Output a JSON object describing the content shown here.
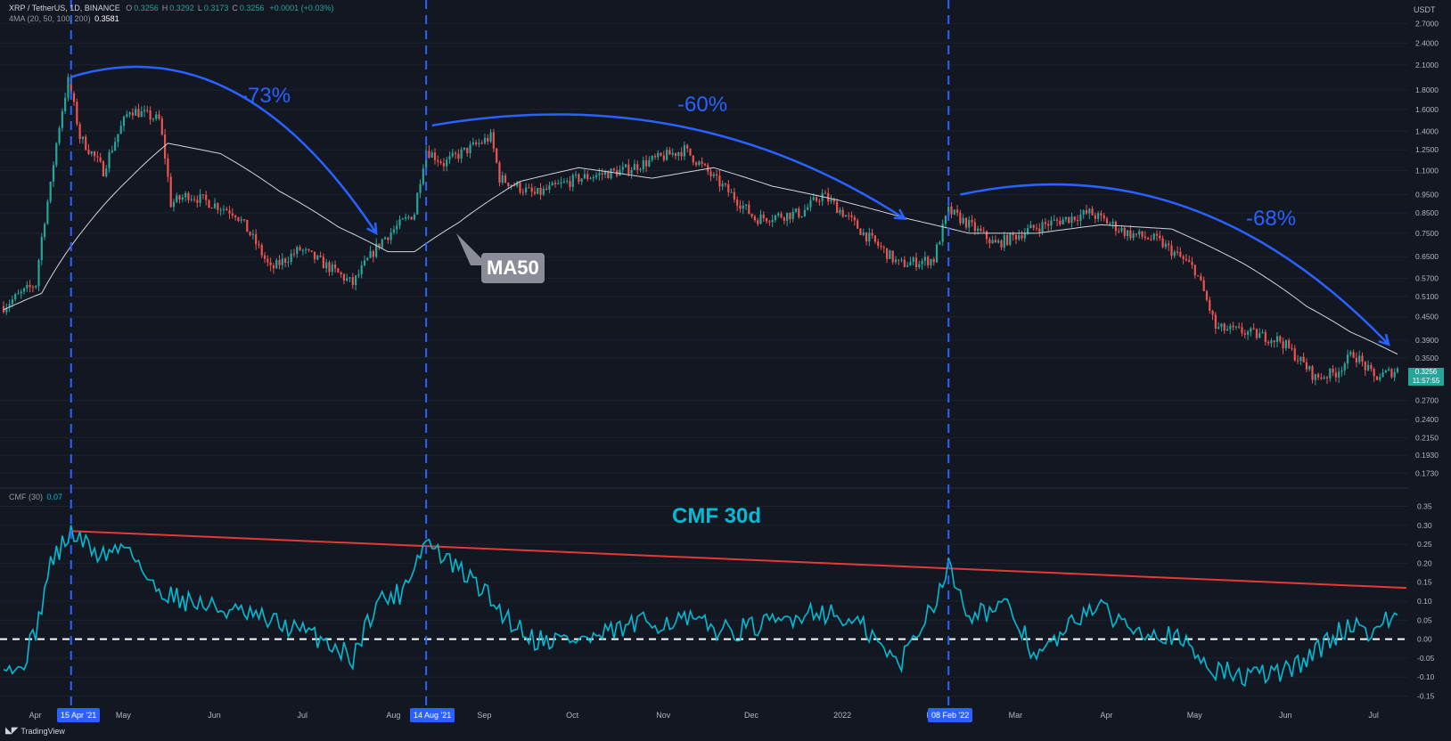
{
  "header": {
    "symbol": "XRP / TetherUS, 1D, BINANCE",
    "ohlc": [
      {
        "k": "O",
        "v": "0.3256"
      },
      {
        "k": "H",
        "v": "0.3292"
      },
      {
        "k": "L",
        "v": "0.3173"
      },
      {
        "k": "C",
        "v": "0.3256"
      },
      {
        "k": "",
        "v": "+0.0001 (+0.03%)"
      }
    ],
    "ma_indicator": "4MA (20, 50, 100, 200)",
    "ma_value": "0.3581",
    "cmf_indicator": "CMF (30)",
    "cmf_value": "0.07",
    "currency": "USDT"
  },
  "footer": {
    "brand": "TradingView"
  },
  "annotations": {
    "drop1": "-73%",
    "drop2": "-60%",
    "drop3": "-68%",
    "ma_label": "MA50",
    "cmf_title": "CMF 30d"
  },
  "price_badge": {
    "price": "0.3256",
    "countdown": "11:57:55"
  },
  "date_pills": [
    "15 Apr '21",
    "14 Aug '21",
    "08 Feb '22"
  ],
  "colors": {
    "background": "#131722",
    "up": "#26a69a",
    "down": "#ef5350",
    "ma": "#d1d4dc",
    "annotation": "#2962ff",
    "cmf": "#00bcd4",
    "trend": "#e53935"
  },
  "chart_data": [
    {
      "type": "candlestick",
      "title": "XRP / TetherUS, 1D, BINANCE",
      "y_scale": "log",
      "y_ticks": [
        2.7,
        2.4,
        2.1,
        1.8,
        1.6,
        1.4,
        1.25,
        1.1,
        0.95,
        0.85,
        0.75,
        0.65,
        0.57,
        0.51,
        0.45,
        0.39,
        0.35,
        0.27,
        0.24,
        0.215,
        0.193,
        0.173
      ],
      "y_tick_labels": [
        "2.7000",
        "2.4000",
        "2.1000",
        "1.8000",
        "1.6000",
        "1.4000",
        "1.2500",
        "1.1000",
        "0.9500",
        "0.8500",
        "0.7500",
        "0.6500",
        "0.5700",
        "0.5100",
        "0.4500",
        "0.3900",
        "0.3500",
        "0.2700",
        "0.2400",
        "0.2150",
        "0.1930",
        "0.1730"
      ],
      "x_ticks": [
        "Apr",
        "May",
        "Jun",
        "Jul",
        "Aug",
        "Sep",
        "Oct",
        "Nov",
        "Dec",
        "2022",
        "Feb",
        "Mar",
        "Apr",
        "May",
        "Jun",
        "Jul"
      ],
      "x_range": [
        "2021-03-23",
        "2022-07-11"
      ],
      "price_anchors": [
        {
          "date": "2021-03-23",
          "price": 0.48
        },
        {
          "date": "2021-04-03",
          "price": 0.55
        },
        {
          "date": "2021-04-08",
          "price": 1.0
        },
        {
          "date": "2021-04-14",
          "price": 1.9
        },
        {
          "date": "2021-04-18",
          "price": 1.35
        },
        {
          "date": "2021-04-26",
          "price": 1.1
        },
        {
          "date": "2021-05-05",
          "price": 1.6
        },
        {
          "date": "2021-05-15",
          "price": 1.5
        },
        {
          "date": "2021-05-19",
          "price": 0.9
        },
        {
          "date": "2021-05-25",
          "price": 0.95
        },
        {
          "date": "2021-06-10",
          "price": 0.85
        },
        {
          "date": "2021-06-22",
          "price": 0.6
        },
        {
          "date": "2021-07-02",
          "price": 0.68
        },
        {
          "date": "2021-07-20",
          "price": 0.55
        },
        {
          "date": "2021-07-30",
          "price": 0.72
        },
        {
          "date": "2021-08-10",
          "price": 0.85
        },
        {
          "date": "2021-08-14",
          "price": 1.25
        },
        {
          "date": "2021-08-20",
          "price": 1.15
        },
        {
          "date": "2021-09-05",
          "price": 1.35
        },
        {
          "date": "2021-09-08",
          "price": 1.05
        },
        {
          "date": "2021-09-20",
          "price": 0.95
        },
        {
          "date": "2021-10-05",
          "price": 1.05
        },
        {
          "date": "2021-10-20",
          "price": 1.1
        },
        {
          "date": "2021-11-10",
          "price": 1.25
        },
        {
          "date": "2021-11-20",
          "price": 1.05
        },
        {
          "date": "2021-12-04",
          "price": 0.82
        },
        {
          "date": "2021-12-20",
          "price": 0.85
        },
        {
          "date": "2021-12-27",
          "price": 0.95
        },
        {
          "date": "2022-01-10",
          "price": 0.75
        },
        {
          "date": "2022-01-22",
          "price": 0.62
        },
        {
          "date": "2022-02-03",
          "price": 0.64
        },
        {
          "date": "2022-02-08",
          "price": 0.86
        },
        {
          "date": "2022-02-24",
          "price": 0.7
        },
        {
          "date": "2022-03-10",
          "price": 0.78
        },
        {
          "date": "2022-03-28",
          "price": 0.85
        },
        {
          "date": "2022-04-10",
          "price": 0.75
        },
        {
          "date": "2022-04-20",
          "price": 0.72
        },
        {
          "date": "2022-05-03",
          "price": 0.6
        },
        {
          "date": "2022-05-10",
          "price": 0.42
        },
        {
          "date": "2022-05-20",
          "price": 0.41
        },
        {
          "date": "2022-06-01",
          "price": 0.39
        },
        {
          "date": "2022-06-13",
          "price": 0.31
        },
        {
          "date": "2022-06-20",
          "price": 0.32
        },
        {
          "date": "2022-06-26",
          "price": 0.36
        },
        {
          "date": "2022-07-03",
          "price": 0.31
        },
        {
          "date": "2022-07-11",
          "price": 0.3256
        }
      ],
      "ma50_anchors": [
        {
          "date": "2021-03-23",
          "price": 0.47
        },
        {
          "date": "2021-04-05",
          "price": 0.52
        },
        {
          "date": "2021-04-20",
          "price": 0.78
        },
        {
          "date": "2021-05-05",
          "price": 1.05
        },
        {
          "date": "2021-05-18",
          "price": 1.3
        },
        {
          "date": "2021-06-05",
          "price": 1.22
        },
        {
          "date": "2021-06-25",
          "price": 0.97
        },
        {
          "date": "2021-07-15",
          "price": 0.78
        },
        {
          "date": "2021-08-01",
          "price": 0.67
        },
        {
          "date": "2021-08-10",
          "price": 0.67
        },
        {
          "date": "2021-08-25",
          "price": 0.8
        },
        {
          "date": "2021-09-15",
          "price": 1.03
        },
        {
          "date": "2021-10-05",
          "price": 1.12
        },
        {
          "date": "2021-10-30",
          "price": 1.05
        },
        {
          "date": "2021-11-20",
          "price": 1.12
        },
        {
          "date": "2021-12-10",
          "price": 1.0
        },
        {
          "date": "2022-01-01",
          "price": 0.92
        },
        {
          "date": "2022-01-25",
          "price": 0.82
        },
        {
          "date": "2022-02-15",
          "price": 0.75
        },
        {
          "date": "2022-03-10",
          "price": 0.75
        },
        {
          "date": "2022-04-01",
          "price": 0.79
        },
        {
          "date": "2022-04-25",
          "price": 0.77
        },
        {
          "date": "2022-05-20",
          "price": 0.62
        },
        {
          "date": "2022-06-10",
          "price": 0.48
        },
        {
          "date": "2022-06-25",
          "price": 0.41
        },
        {
          "date": "2022-07-11",
          "price": 0.3581
        }
      ]
    },
    {
      "type": "line",
      "title": "CMF (30)",
      "y_ticks": [
        0.35,
        0.3,
        0.25,
        0.2,
        0.15,
        0.1,
        0.05,
        0.0,
        -0.05,
        -0.1,
        -0.15
      ],
      "y_tick_labels": [
        "0.35",
        "0.30",
        "0.25",
        "0.20",
        "0.15",
        "0.10",
        "0.05",
        "0.00",
        "-0.05",
        "-0.10",
        "-0.15"
      ],
      "x_range": [
        "2021-03-23",
        "2022-07-11"
      ],
      "cmf_anchors": [
        {
          "date": "2021-03-23",
          "v": -0.05
        },
        {
          "date": "2021-03-28",
          "v": -0.09
        },
        {
          "date": "2021-04-03",
          "v": 0.02
        },
        {
          "date": "2021-04-08",
          "v": 0.2
        },
        {
          "date": "2021-04-15",
          "v": 0.28
        },
        {
          "date": "2021-04-25",
          "v": 0.22
        },
        {
          "date": "2021-05-05",
          "v": 0.25
        },
        {
          "date": "2021-05-12",
          "v": 0.14
        },
        {
          "date": "2021-05-25",
          "v": 0.1
        },
        {
          "date": "2021-06-10",
          "v": 0.07
        },
        {
          "date": "2021-06-25",
          "v": 0.04
        },
        {
          "date": "2021-07-10",
          "v": 0.0
        },
        {
          "date": "2021-07-20",
          "v": -0.05
        },
        {
          "date": "2021-07-28",
          "v": 0.1
        },
        {
          "date": "2021-08-05",
          "v": 0.12
        },
        {
          "date": "2021-08-14",
          "v": 0.26
        },
        {
          "date": "2021-08-22",
          "v": 0.2
        },
        {
          "date": "2021-09-01",
          "v": 0.14
        },
        {
          "date": "2021-09-10",
          "v": 0.06
        },
        {
          "date": "2021-09-20",
          "v": 0.0
        },
        {
          "date": "2021-10-10",
          "v": 0.0
        },
        {
          "date": "2021-10-25",
          "v": 0.04
        },
        {
          "date": "2021-11-10",
          "v": 0.05
        },
        {
          "date": "2021-11-25",
          "v": 0.02
        },
        {
          "date": "2021-12-10",
          "v": 0.04
        },
        {
          "date": "2021-12-25",
          "v": 0.08
        },
        {
          "date": "2022-01-10",
          "v": 0.03
        },
        {
          "date": "2022-01-22",
          "v": -0.07
        },
        {
          "date": "2022-02-03",
          "v": 0.1
        },
        {
          "date": "2022-02-08",
          "v": 0.19
        },
        {
          "date": "2022-02-15",
          "v": 0.07
        },
        {
          "date": "2022-03-01",
          "v": 0.08
        },
        {
          "date": "2022-03-10",
          "v": -0.05
        },
        {
          "date": "2022-03-20",
          "v": 0.02
        },
        {
          "date": "2022-03-28",
          "v": 0.09
        },
        {
          "date": "2022-04-10",
          "v": 0.04
        },
        {
          "date": "2022-04-25",
          "v": 0.01
        },
        {
          "date": "2022-05-10",
          "v": -0.08
        },
        {
          "date": "2022-05-20",
          "v": -0.1
        },
        {
          "date": "2022-06-05",
          "v": -0.08
        },
        {
          "date": "2022-06-15",
          "v": -0.02
        },
        {
          "date": "2022-06-25",
          "v": 0.04
        },
        {
          "date": "2022-07-03",
          "v": 0.02
        },
        {
          "date": "2022-07-11",
          "v": 0.07
        }
      ],
      "trendline": [
        {
          "date": "2021-04-15",
          "v": 0.285
        },
        {
          "date": "2022-07-11",
          "v": 0.135
        }
      ],
      "zero_line": 0.0
    }
  ],
  "markers": {
    "vertical_dates": [
      "2021-04-15",
      "2021-08-14",
      "2022-02-08"
    ],
    "drop_arcs": [
      {
        "from_date": "2021-04-15",
        "from_price": 1.95,
        "to_date": "2021-07-28",
        "to_price": 0.75
      },
      {
        "from_date": "2021-08-16",
        "from_price": 1.45,
        "to_date": "2022-01-24",
        "to_price": 0.82
      },
      {
        "from_date": "2022-02-12",
        "from_price": 0.95,
        "to_date": "2022-07-08",
        "to_price": 0.38
      }
    ]
  }
}
